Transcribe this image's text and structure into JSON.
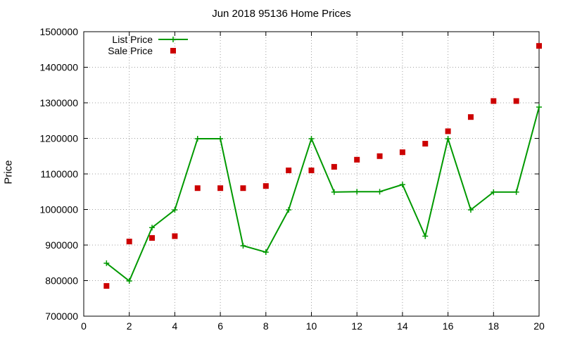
{
  "chart_data": {
    "type": "line",
    "title": "Jun 2018 95136 Home Prices",
    "xlabel": "",
    "ylabel": "Price",
    "xlim": [
      0,
      20
    ],
    "ylim": [
      700000,
      1500000
    ],
    "x_ticks": [
      0,
      2,
      4,
      6,
      8,
      10,
      12,
      14,
      16,
      18,
      20
    ],
    "y_ticks": [
      700000,
      800000,
      900000,
      1000000,
      1100000,
      1200000,
      1300000,
      1400000,
      1500000
    ],
    "grid": true,
    "legend_position": "top-left",
    "series": [
      {
        "name": "List Price",
        "style": "line+markers",
        "marker": "plus",
        "color": "#009900",
        "x": [
          1,
          2,
          3,
          4,
          5,
          6,
          7,
          8,
          9,
          10,
          11,
          12,
          13,
          14,
          15,
          16,
          17,
          18,
          19,
          20
        ],
        "values": [
          849000,
          799000,
          949000,
          999000,
          1199000,
          1199000,
          898000,
          880000,
          999000,
          1199000,
          1049000,
          1050000,
          1050000,
          1070000,
          925000,
          1199000,
          999000,
          1049000,
          1049000,
          1288000
        ]
      },
      {
        "name": "Sale Price",
        "style": "markers",
        "marker": "square",
        "color": "#cc0000",
        "x": [
          1,
          2,
          3,
          4,
          5,
          6,
          7,
          8,
          9,
          10,
          11,
          12,
          13,
          14,
          15,
          16,
          17,
          18,
          19,
          20
        ],
        "values": [
          785000,
          910000,
          920000,
          925000,
          1060000,
          1060000,
          1060000,
          1066000,
          1110000,
          1110000,
          1120000,
          1140000,
          1150000,
          1161000,
          1185000,
          1220000,
          1260000,
          1305000,
          1305000,
          1460000
        ]
      }
    ]
  }
}
